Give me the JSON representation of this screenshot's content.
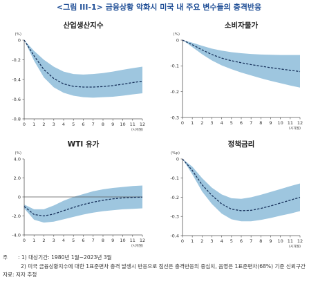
{
  "title": "<그림 III-1> 금융상황 악화시 미국 내 주요 변수들의 충격반응",
  "chart_data": [
    {
      "type": "area",
      "title": "산업생산지수",
      "unit_label": "(%)",
      "x_unit_label": "(시개월)",
      "x": [
        0,
        1,
        2,
        3,
        4,
        5,
        6,
        7,
        8,
        9,
        10,
        11,
        12
      ],
      "x_ticks": [
        "0",
        "1",
        "2",
        "3",
        "4",
        "5",
        "6",
        "7",
        "8",
        "9",
        "10",
        "11",
        "12"
      ],
      "ylim": [
        -0.8,
        0
      ],
      "y_ticks": [
        0,
        -0.2,
        -0.4,
        -0.6,
        -0.8
      ],
      "y_tick_labels": [
        "0",
        "-0.2",
        "-0.4",
        "-0.6",
        "-0.8"
      ],
      "center": [
        0,
        -0.16,
        -0.3,
        -0.39,
        -0.445,
        -0.47,
        -0.477,
        -0.477,
        -0.472,
        -0.462,
        -0.448,
        -0.432,
        -0.417
      ],
      "upper": [
        0,
        -0.11,
        -0.2,
        -0.27,
        -0.32,
        -0.345,
        -0.35,
        -0.345,
        -0.335,
        -0.32,
        -0.302,
        -0.285,
        -0.27
      ],
      "lower": [
        0,
        -0.21,
        -0.38,
        -0.48,
        -0.535,
        -0.565,
        -0.58,
        -0.585,
        -0.58,
        -0.575,
        -0.565,
        -0.552,
        -0.54
      ]
    },
    {
      "type": "area",
      "title": "소비자물가",
      "unit_label": "(%)",
      "x_unit_label": "(시개월)",
      "x": [
        0,
        1,
        2,
        3,
        4,
        5,
        6,
        7,
        8,
        9,
        10,
        11,
        12
      ],
      "x_ticks": [
        "0",
        "1",
        "2",
        "3",
        "4",
        "5",
        "6",
        "7",
        "8",
        "9",
        "10",
        "11",
        "12"
      ],
      "ylim": [
        -0.3,
        0
      ],
      "y_ticks": [
        0,
        -0.1,
        -0.2,
        -0.3
      ],
      "y_tick_labels": [
        "0",
        "-0.1",
        "-0.2",
        "-0.3"
      ],
      "center": [
        0,
        -0.018,
        -0.038,
        -0.056,
        -0.07,
        -0.08,
        -0.088,
        -0.095,
        -0.101,
        -0.107,
        -0.112,
        -0.117,
        -0.122
      ],
      "upper": [
        0,
        -0.01,
        -0.022,
        -0.033,
        -0.041,
        -0.047,
        -0.051,
        -0.054,
        -0.056,
        -0.057,
        -0.058,
        -0.058,
        -0.058
      ],
      "lower": [
        0,
        -0.027,
        -0.055,
        -0.079,
        -0.098,
        -0.113,
        -0.126,
        -0.137,
        -0.148,
        -0.158,
        -0.167,
        -0.176,
        -0.184
      ]
    },
    {
      "type": "area",
      "title": "WTI 유가",
      "unit_label": "(%)",
      "x_unit_label": "(시개월)",
      "x": [
        0,
        1,
        2,
        3,
        4,
        5,
        6,
        7,
        8,
        9,
        10,
        11,
        12
      ],
      "x_ticks": [
        "0",
        "1",
        "2",
        "3",
        "4",
        "5",
        "6",
        "7",
        "8",
        "9",
        "10",
        "11",
        "12"
      ],
      "ylim": [
        -4.0,
        4.0
      ],
      "y_ticks": [
        4,
        2,
        0,
        -2,
        -4
      ],
      "y_tick_labels": [
        "4.0",
        "2.0",
        "0",
        "-2.0",
        "-4.0"
      ],
      "center": [
        -1.0,
        -1.85,
        -2.0,
        -1.8,
        -1.45,
        -1.1,
        -0.8,
        -0.55,
        -0.35,
        -0.2,
        -0.1,
        -0.05,
        -0.02
      ],
      "upper": [
        -0.8,
        -1.3,
        -1.3,
        -0.9,
        -0.4,
        0.0,
        0.3,
        0.6,
        0.8,
        0.95,
        1.05,
        1.15,
        1.2
      ],
      "lower": [
        -1.2,
        -2.4,
        -2.7,
        -2.6,
        -2.35,
        -2.1,
        -1.85,
        -1.65,
        -1.5,
        -1.4,
        -1.3,
        -1.25,
        -1.2
      ]
    },
    {
      "type": "area",
      "title": "정책금리",
      "unit_label": "(%p)",
      "x_unit_label": "(시개월)",
      "x": [
        0,
        1,
        2,
        3,
        4,
        5,
        6,
        7,
        8,
        9,
        10,
        11,
        12
      ],
      "x_ticks": [
        "0",
        "1",
        "2",
        "3",
        "4",
        "5",
        "6",
        "7",
        "8",
        "9",
        "10",
        "11",
        "12"
      ],
      "ylim": [
        -0.4,
        0
      ],
      "y_ticks": [
        0,
        -0.1,
        -0.2,
        -0.3,
        -0.4
      ],
      "y_tick_labels": [
        "0",
        "-0.1",
        "-0.2",
        "-0.3",
        "-0.4"
      ],
      "center": [
        0,
        -0.06,
        -0.135,
        -0.19,
        -0.235,
        -0.262,
        -0.27,
        -0.268,
        -0.258,
        -0.245,
        -0.23,
        -0.215,
        -0.2
      ],
      "upper": [
        0,
        -0.04,
        -0.1,
        -0.15,
        -0.185,
        -0.205,
        -0.208,
        -0.2,
        -0.187,
        -0.172,
        -0.157,
        -0.142,
        -0.128
      ],
      "lower": [
        0,
        -0.08,
        -0.17,
        -0.235,
        -0.285,
        -0.315,
        -0.325,
        -0.325,
        -0.318,
        -0.308,
        -0.296,
        -0.285,
        -0.272
      ]
    }
  ],
  "notes": {
    "label": "주",
    "line1": ": 1) 대상기간: 1980년 1월~2023년 3월",
    "line2": "2) 미국 금융상황지수에 대한 1표준편차 충격 발생시 반응으로 점선은 충격반응의 중심치, 음영은 1표준편차(68%) 기준 신뢰구간",
    "source": "자료: 저자 추정"
  },
  "colors": {
    "band": "#9ec6df",
    "line": "#17305a",
    "title": "#1f4e96"
  }
}
